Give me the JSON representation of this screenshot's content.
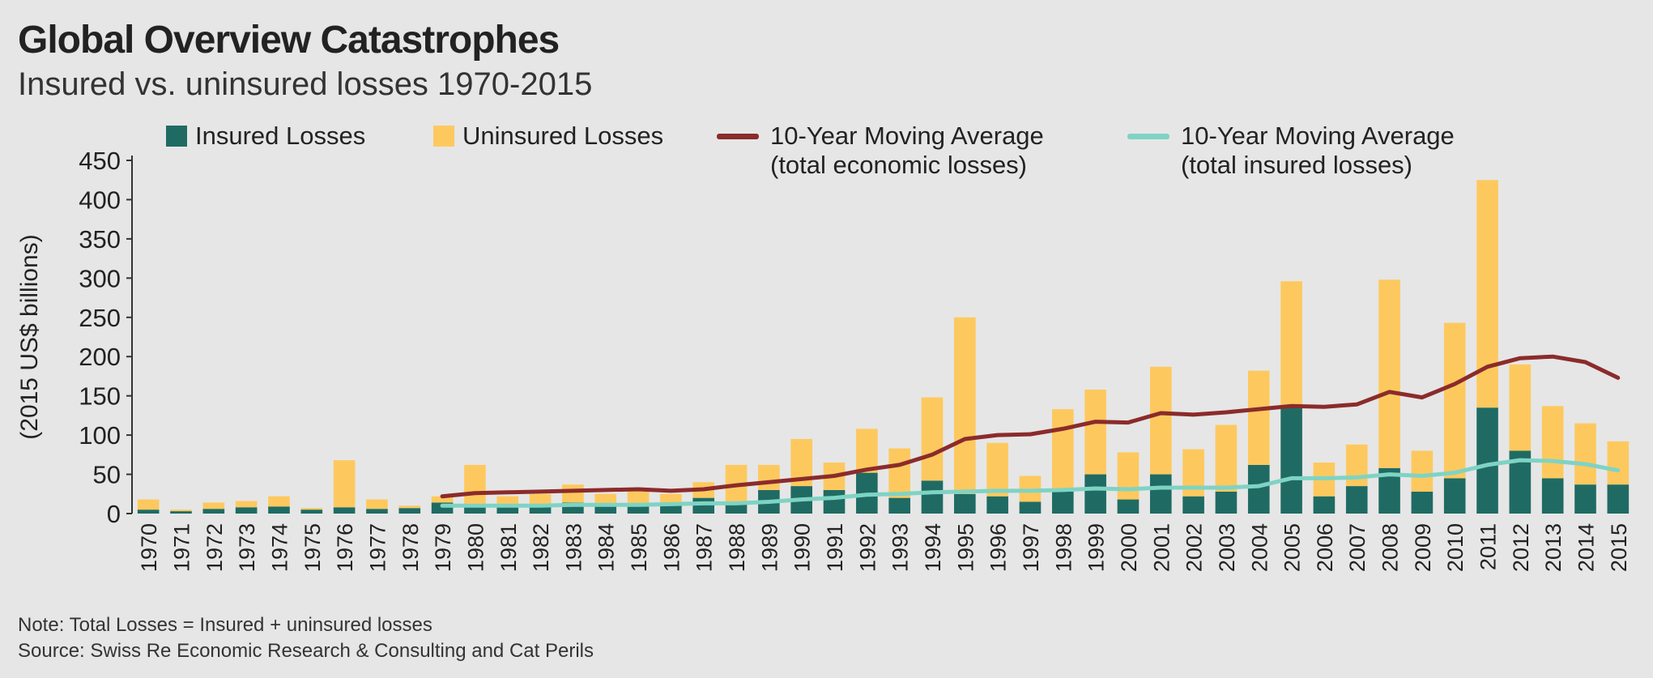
{
  "chart_data": {
    "type": "bar",
    "stacked": true,
    "title": "Global Overview Catastrophes",
    "subtitle": "Insured vs. uninsured losses 1970-2015",
    "y_label": "(2015 US$ billions)",
    "note": "Note: Total Losses = Insured + uninsured losses",
    "source": "Source: Swiss Re Economic Research & Consulting and Cat Perils",
    "categories": [
      "1970",
      "1971",
      "1972",
      "1973",
      "1974",
      "1975",
      "1976",
      "1977",
      "1978",
      "1979",
      "1980",
      "1981",
      "1982",
      "1983",
      "1984",
      "1985",
      "1986",
      "1987",
      "1988",
      "1989",
      "1990",
      "1991",
      "1992",
      "1993",
      "1994",
      "1995",
      "1996",
      "1997",
      "1998",
      "1999",
      "2000",
      "2001",
      "2002",
      "2003",
      "2004",
      "2005",
      "2006",
      "2007",
      "2008",
      "2009",
      "2010",
      "2011",
      "2012",
      "2013",
      "2014",
      "2015"
    ],
    "ylim": [
      0,
      450
    ],
    "yticks": [
      0,
      50,
      100,
      150,
      200,
      250,
      300,
      350,
      400,
      450
    ],
    "grid": false,
    "legend": "top",
    "series": [
      {
        "name": "Insured Losses",
        "type": "bar",
        "color": "#1f6b63",
        "values": [
          5,
          3,
          6,
          8,
          9,
          5,
          8,
          6,
          7,
          14,
          10,
          8,
          9,
          14,
          10,
          12,
          10,
          20,
          12,
          30,
          35,
          30,
          52,
          20,
          42,
          25,
          22,
          15,
          28,
          50,
          18,
          50,
          22,
          28,
          62,
          135,
          22,
          35,
          58,
          28,
          45,
          135,
          80,
          45,
          37,
          37
        ]
      },
      {
        "name": "Uninsured Losses",
        "type": "bar",
        "color": "#fdc95e",
        "values": [
          13,
          2,
          8,
          8,
          13,
          2,
          60,
          12,
          3,
          8,
          52,
          14,
          16,
          23,
          15,
          18,
          15,
          20,
          50,
          32,
          60,
          35,
          56,
          63,
          106,
          225,
          68,
          33,
          105,
          108,
          60,
          137,
          60,
          85,
          120,
          161,
          43,
          53,
          240,
          52,
          198,
          290,
          110,
          92,
          78,
          55
        ]
      },
      {
        "name": "10-Year Moving Average (total economic losses)",
        "type": "line",
        "color": "#8b2b2b",
        "values": [
          null,
          null,
          null,
          null,
          null,
          null,
          null,
          null,
          null,
          22,
          26,
          27,
          28,
          29,
          30,
          31,
          29,
          31,
          36,
          40,
          44,
          48,
          56,
          62,
          75,
          95,
          100,
          101,
          108,
          117,
          116,
          128,
          126,
          129,
          133,
          137,
          136,
          139,
          155,
          148,
          165,
          187,
          198,
          200,
          193,
          173
        ]
      },
      {
        "name": "10-Year Moving Average (total insured losses)",
        "type": "line",
        "color": "#7fd3c4",
        "values": [
          null,
          null,
          null,
          null,
          null,
          null,
          null,
          null,
          null,
          10,
          10,
          10,
          10,
          11,
          11,
          11,
          12,
          13,
          13,
          15,
          18,
          20,
          24,
          25,
          27,
          28,
          29,
          29,
          30,
          32,
          31,
          33,
          33,
          33,
          35,
          45,
          45,
          46,
          50,
          48,
          52,
          62,
          68,
          67,
          63,
          55
        ]
      }
    ]
  }
}
